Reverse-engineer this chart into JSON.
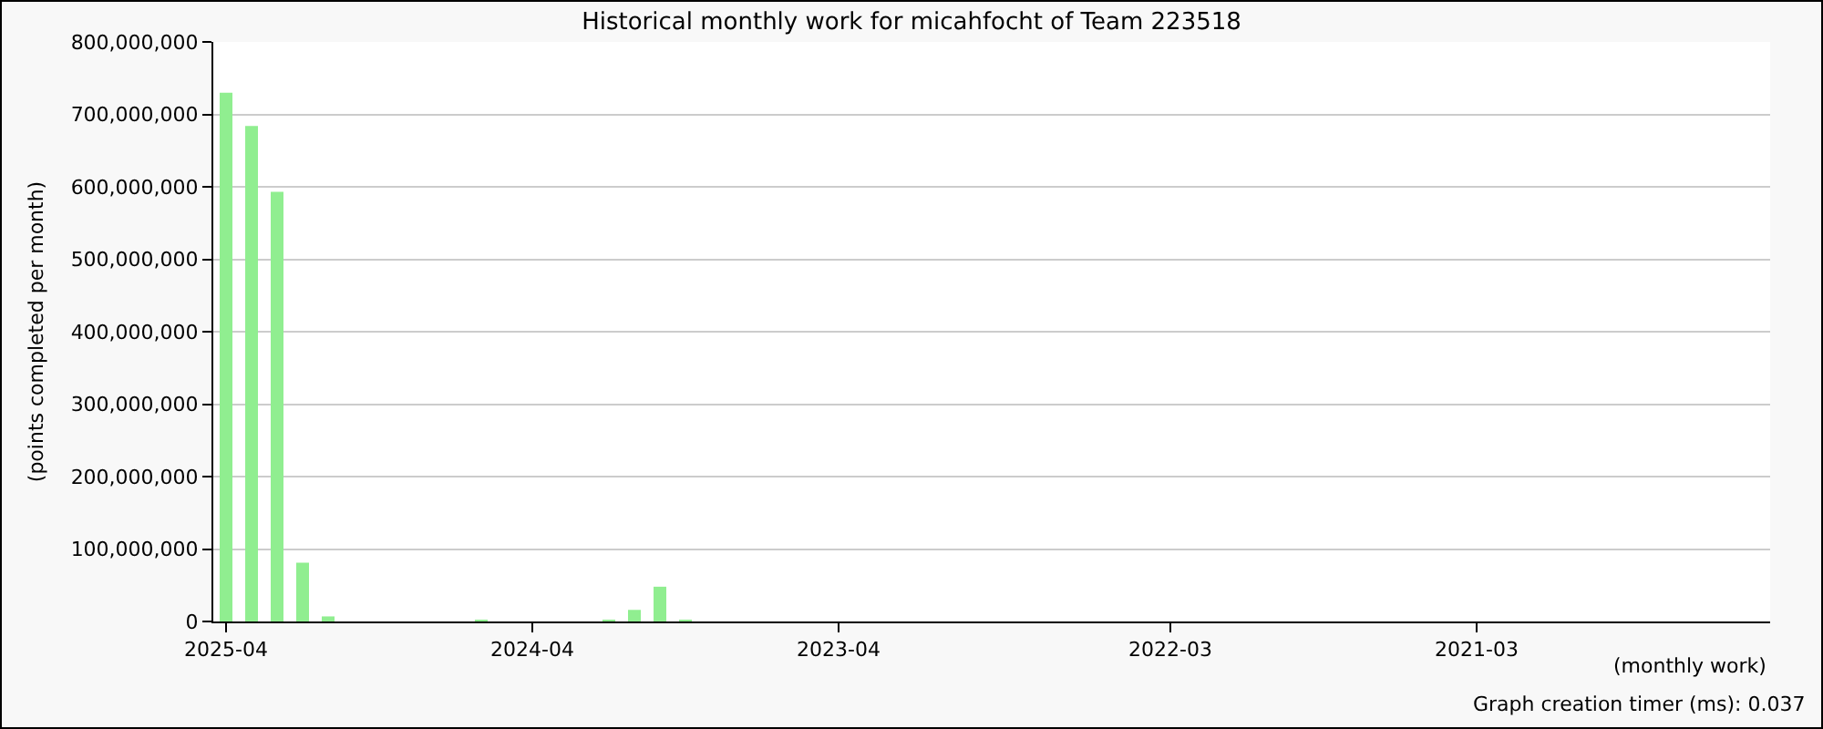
{
  "chart_data": {
    "type": "bar",
    "title": "Historical monthly work for micahfocht of Team 223518",
    "xlabel": "(monthly work)",
    "ylabel": "(points completed per month)",
    "categories": [
      "2025-04",
      null,
      null,
      null,
      null,
      null,
      null,
      null,
      null,
      null,
      null,
      null,
      "2024-04",
      null,
      null,
      null,
      null,
      null,
      null,
      null,
      null,
      null,
      null,
      null,
      "2023-04",
      null,
      null,
      null,
      null,
      null,
      null,
      null,
      null,
      null,
      null,
      null,
      null,
      "2022-03",
      null,
      null,
      null,
      null,
      null,
      null,
      null,
      null,
      null,
      null,
      null,
      "2021-03",
      null,
      null,
      null,
      null,
      null,
      null,
      null,
      null,
      null,
      null,
      null
    ],
    "values": [
      730000000,
      684000000,
      593000000,
      81000000,
      7000000,
      0,
      0,
      0,
      0,
      0,
      2000000,
      0,
      0,
      0,
      0,
      2000000,
      16000000,
      48000000,
      1000000,
      0,
      0,
      0,
      0,
      0,
      0,
      0,
      0,
      0,
      0,
      0,
      0,
      0,
      0,
      0,
      0,
      0,
      0,
      0,
      0,
      0,
      0,
      0,
      0,
      0,
      0,
      0,
      0,
      0,
      0,
      0,
      0,
      0,
      0,
      0,
      0,
      0,
      0,
      0,
      0,
      0,
      0
    ],
    "color": "#90ee90",
    "ylim": [
      0,
      800000000
    ],
    "yticks": [
      {
        "value": 0,
        "label": "0"
      },
      {
        "value": 100000000,
        "label": "100,000,000"
      },
      {
        "value": 200000000,
        "label": "200,000,000"
      },
      {
        "value": 300000000,
        "label": "300,000,000"
      },
      {
        "value": 400000000,
        "label": "400,000,000"
      },
      {
        "value": 500000000,
        "label": "500,000,000"
      },
      {
        "value": 600000000,
        "label": "600,000,000"
      },
      {
        "value": 700000000,
        "label": "700,000,000"
      },
      {
        "value": 800000000,
        "label": "800,000,000"
      }
    ],
    "grid": "y",
    "annotations": [
      "Graph creation timer (ms): 0.037"
    ]
  }
}
